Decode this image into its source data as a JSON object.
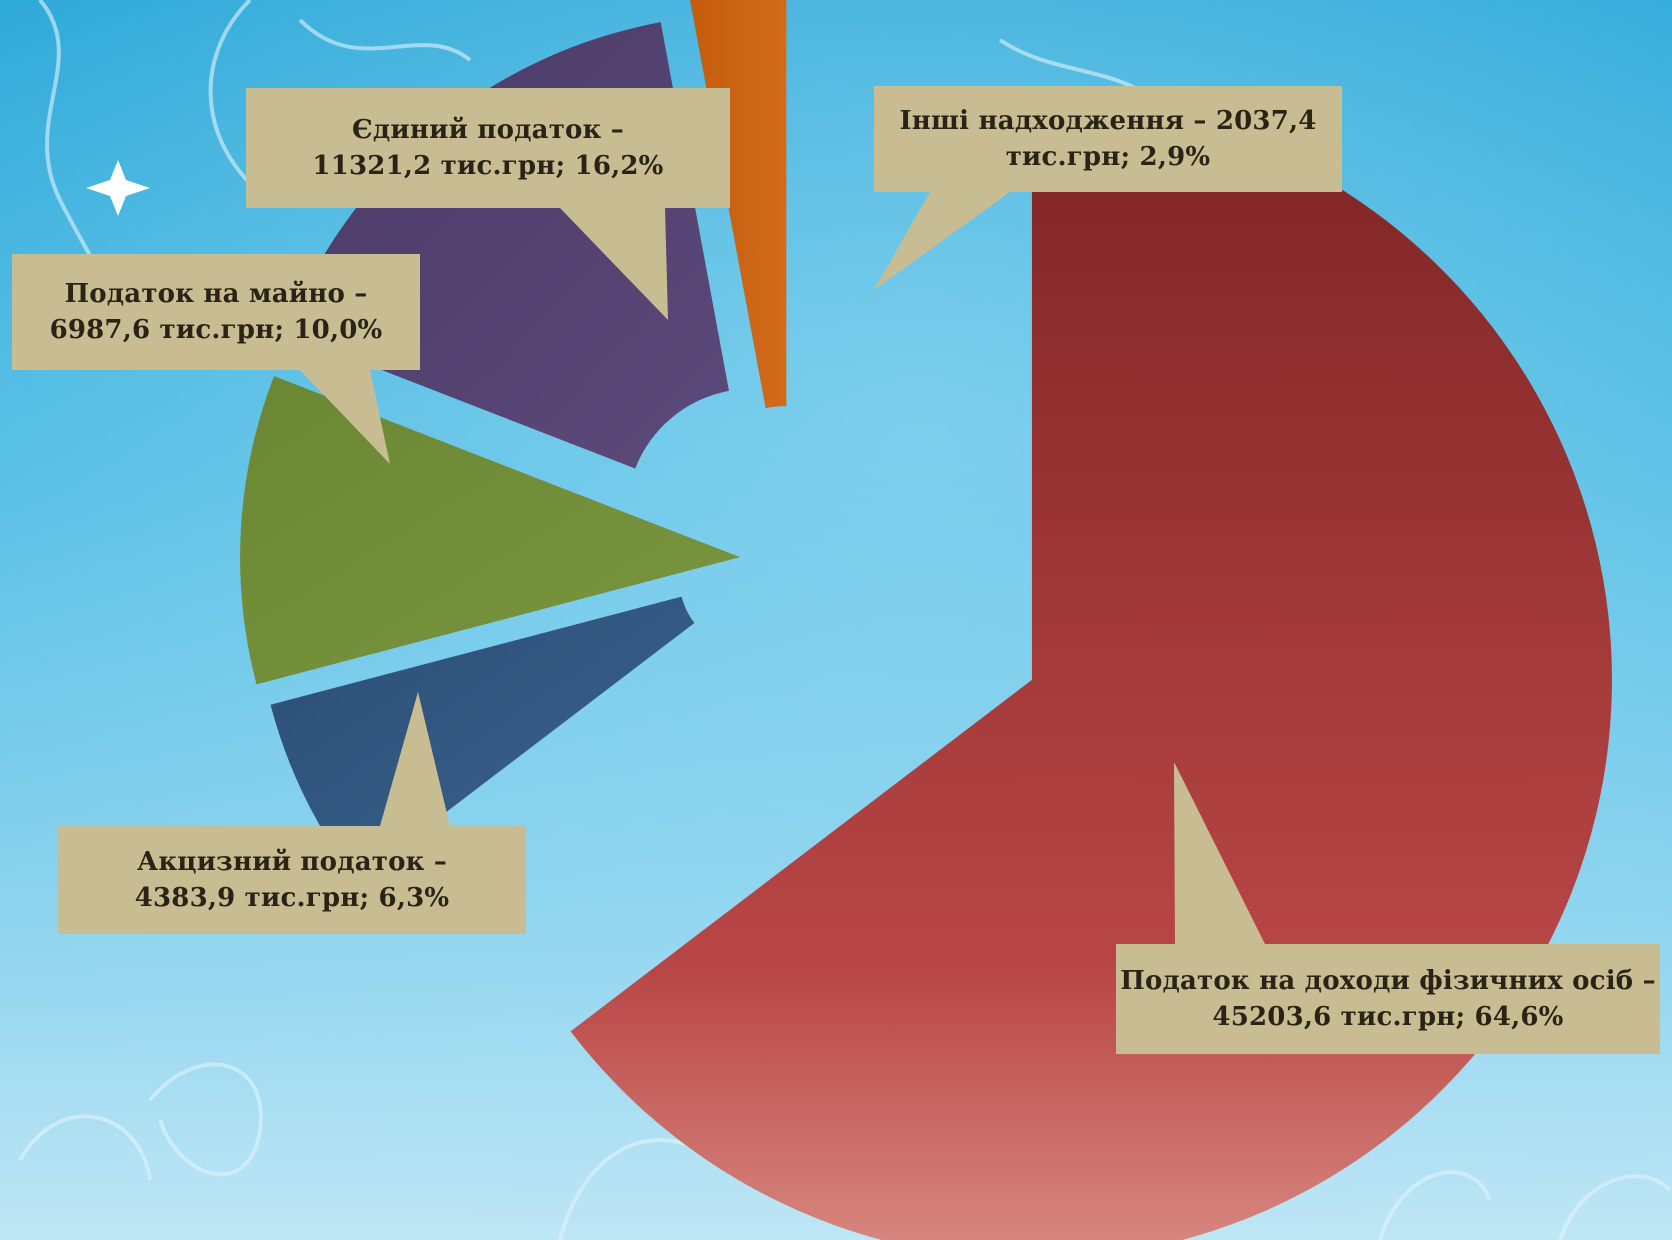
{
  "chart_data": {
    "type": "pie",
    "style": "exploded",
    "series": [
      {
        "name": "Податок на доходи фізичних осіб",
        "value": 45203.6,
        "percent": 64.6,
        "color": "#8c2a2a",
        "label_lines": [
          "Податок на доходи фізичних осіб –",
          "45203,6 тис.грн; 64,6%"
        ]
      },
      {
        "name": "Акцизний податок",
        "value": 4383.9,
        "percent": 6.3,
        "color": "#2f5680",
        "label_lines": [
          "Акцизний податок –",
          "4383,9 тис.грн; 6,3%"
        ]
      },
      {
        "name": "Податок на майно",
        "value": 6987.6,
        "percent": 10.0,
        "color": "#6e8a36",
        "label_lines": [
          "Податок на майно –",
          "6987,6 тис.грн; 10,0%"
        ]
      },
      {
        "name": "Єдиний податок",
        "value": 11321.2,
        "percent": 16.2,
        "color": "#4f3d6b",
        "label_lines": [
          "Єдиний податок –",
          "11321,2 тис.грн; 16,2%"
        ]
      },
      {
        "name": "Інші надходження",
        "value": 2037.4,
        "percent": 2.9,
        "color": "#c8610f",
        "label_lines": [
          "Інші надходження – 2037,4",
          "тис.грн; 2,9%"
        ]
      }
    ],
    "callout_color": "#c8bd92",
    "background": "#4fbce4"
  }
}
